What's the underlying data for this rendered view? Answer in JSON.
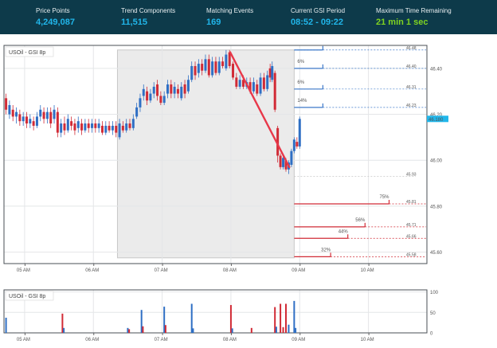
{
  "stats": [
    {
      "label": "Price Points",
      "value": "4,249,087",
      "color": "#21b6ea"
    },
    {
      "label": "Trend Components",
      "value": "11,515",
      "color": "#21b6ea"
    },
    {
      "label": "Matching Events",
      "value": "169",
      "color": "#21b6ea"
    },
    {
      "label": "Current GSI Period",
      "value": "08:52 - 09:22",
      "color": "#21b6ea"
    },
    {
      "label": "Maximum Time Remaining",
      "value": "21 min 1 sec",
      "color": "#7fd321"
    }
  ],
  "chart_data": [
    {
      "type": "candlestick",
      "legend": "USOil - GSI 8p",
      "x_ticks": [
        "05 AM",
        "06 AM",
        "07 AM",
        "08 AM",
        "09 AM",
        "10 AM"
      ],
      "x_tick_hours": [
        5,
        6,
        7,
        8,
        9,
        10
      ],
      "x_range_hours": [
        4.7,
        10.85
      ],
      "y_ticks": [
        45.6,
        45.8,
        46.0,
        46.2,
        46.4
      ],
      "y_range": [
        45.55,
        46.5
      ],
      "current_price": {
        "label": "46.180",
        "value": 46.18
      },
      "highlight_window_hours": [
        6.35,
        8.92
      ],
      "trend_line": [
        {
          "t": 7.99,
          "price": 46.47
        },
        {
          "t": 8.85,
          "price": 45.97
        }
      ],
      "projections_up": [
        {
          "percent": "",
          "label": "46.48",
          "price": 46.48
        },
        {
          "percent": "6%",
          "label": "46.40",
          "price": 46.4
        },
        {
          "percent": "6%",
          "label": "46.31",
          "price": 46.31
        },
        {
          "percent": "14%",
          "label": "46.23",
          "price": 46.23
        }
      ],
      "projections_down": [
        {
          "percent": "75%",
          "label": "45.81",
          "price": 45.81,
          "end_hour": 10.3
        },
        {
          "percent": "56%",
          "label": "45.71",
          "price": 45.71,
          "end_hour": 9.95
        },
        {
          "percent": "44%",
          "label": "45.66",
          "price": 45.66,
          "end_hour": 9.7
        },
        {
          "percent": "32%",
          "label": "45.58",
          "price": 45.58,
          "end_hour": 9.45
        }
      ],
      "mid_level": {
        "label": "45.93",
        "price": 45.93
      },
      "candles": [
        {
          "t": 4.73,
          "o": 46.27,
          "c": 46.22,
          "h": 46.29,
          "l": 46.2
        },
        {
          "t": 4.78,
          "o": 46.2,
          "c": 46.24,
          "h": 46.26,
          "l": 46.18
        },
        {
          "t": 4.83,
          "o": 46.22,
          "c": 46.19,
          "h": 46.24,
          "l": 46.17
        },
        {
          "t": 4.88,
          "o": 46.19,
          "c": 46.21,
          "h": 46.23,
          "l": 46.16
        },
        {
          "t": 4.93,
          "o": 46.2,
          "c": 46.17,
          "h": 46.22,
          "l": 46.15
        },
        {
          "t": 4.98,
          "o": 46.17,
          "c": 46.19,
          "h": 46.21,
          "l": 46.15
        },
        {
          "t": 5.03,
          "o": 46.19,
          "c": 46.16,
          "h": 46.21,
          "l": 46.14
        },
        {
          "t": 5.08,
          "o": 46.16,
          "c": 46.18,
          "h": 46.2,
          "l": 46.14
        },
        {
          "t": 5.13,
          "o": 46.17,
          "c": 46.15,
          "h": 46.19,
          "l": 46.13
        },
        {
          "t": 5.18,
          "o": 46.15,
          "c": 46.19,
          "h": 46.21,
          "l": 46.14
        },
        {
          "t": 5.23,
          "o": 46.19,
          "c": 46.22,
          "h": 46.24,
          "l": 46.17
        },
        {
          "t": 5.28,
          "o": 46.21,
          "c": 46.18,
          "h": 46.23,
          "l": 46.16
        },
        {
          "t": 5.33,
          "o": 46.18,
          "c": 46.21,
          "h": 46.23,
          "l": 46.16
        },
        {
          "t": 5.38,
          "o": 46.21,
          "c": 46.16,
          "h": 46.23,
          "l": 46.14
        },
        {
          "t": 5.43,
          "o": 46.18,
          "c": 46.22,
          "h": 46.24,
          "l": 46.16
        },
        {
          "t": 5.48,
          "o": 46.21,
          "c": 46.12,
          "h": 46.23,
          "l": 46.1
        },
        {
          "t": 5.53,
          "o": 46.12,
          "c": 46.16,
          "h": 46.18,
          "l": 46.1
        },
        {
          "t": 5.58,
          "o": 46.16,
          "c": 46.13,
          "h": 46.19,
          "l": 46.11
        },
        {
          "t": 5.63,
          "o": 46.13,
          "c": 46.18,
          "h": 46.2,
          "l": 46.12
        },
        {
          "t": 5.68,
          "o": 46.17,
          "c": 46.15,
          "h": 46.19,
          "l": 46.13
        },
        {
          "t": 5.73,
          "o": 46.16,
          "c": 46.13,
          "h": 46.18,
          "l": 46.11
        },
        {
          "t": 5.78,
          "o": 46.14,
          "c": 46.17,
          "h": 46.19,
          "l": 46.12
        },
        {
          "t": 5.83,
          "o": 46.16,
          "c": 46.13,
          "h": 46.18,
          "l": 46.11
        },
        {
          "t": 5.88,
          "o": 46.13,
          "c": 46.16,
          "h": 46.18,
          "l": 46.12
        },
        {
          "t": 5.93,
          "o": 46.16,
          "c": 46.14,
          "h": 46.18,
          "l": 46.12
        },
        {
          "t": 5.98,
          "o": 46.14,
          "c": 46.16,
          "h": 46.18,
          "l": 46.12
        },
        {
          "t": 6.03,
          "o": 46.16,
          "c": 46.14,
          "h": 46.18,
          "l": 46.12
        },
        {
          "t": 6.08,
          "o": 46.14,
          "c": 46.16,
          "h": 46.18,
          "l": 46.12
        },
        {
          "t": 6.13,
          "o": 46.15,
          "c": 46.12,
          "h": 46.17,
          "l": 46.11
        },
        {
          "t": 6.18,
          "o": 46.12,
          "c": 46.15,
          "h": 46.17,
          "l": 46.11
        },
        {
          "t": 6.23,
          "o": 46.15,
          "c": 46.13,
          "h": 46.17,
          "l": 46.12
        },
        {
          "t": 6.28,
          "o": 46.13,
          "c": 46.15,
          "h": 46.17,
          "l": 46.11
        },
        {
          "t": 6.33,
          "o": 46.15,
          "c": 46.12,
          "h": 46.17,
          "l": 46.1
        },
        {
          "t": 6.38,
          "o": 46.1,
          "c": 46.16,
          "h": 46.18,
          "l": 46.09
        },
        {
          "t": 6.43,
          "o": 46.15,
          "c": 46.13,
          "h": 46.17,
          "l": 46.12
        },
        {
          "t": 6.48,
          "o": 46.13,
          "c": 46.16,
          "h": 46.18,
          "l": 46.12
        },
        {
          "t": 6.53,
          "o": 46.16,
          "c": 46.14,
          "h": 46.18,
          "l": 46.13
        },
        {
          "t": 6.58,
          "o": 46.14,
          "c": 46.18,
          "h": 46.2,
          "l": 46.13
        },
        {
          "t": 6.63,
          "o": 46.19,
          "c": 46.23,
          "h": 46.25,
          "l": 46.18
        },
        {
          "t": 6.68,
          "o": 46.23,
          "c": 46.27,
          "h": 46.29,
          "l": 46.21
        },
        {
          "t": 6.73,
          "o": 46.28,
          "c": 46.31,
          "h": 46.33,
          "l": 46.26
        },
        {
          "t": 6.78,
          "o": 46.3,
          "c": 46.26,
          "h": 46.32,
          "l": 46.24
        },
        {
          "t": 6.83,
          "o": 46.26,
          "c": 46.29,
          "h": 46.31,
          "l": 46.25
        },
        {
          "t": 6.88,
          "o": 46.29,
          "c": 46.32,
          "h": 46.34,
          "l": 46.27
        },
        {
          "t": 6.93,
          "o": 46.33,
          "c": 46.28,
          "h": 46.35,
          "l": 46.26
        },
        {
          "t": 6.98,
          "o": 46.28,
          "c": 46.25,
          "h": 46.3,
          "l": 46.24
        },
        {
          "t": 7.03,
          "o": 46.25,
          "c": 46.28,
          "h": 46.3,
          "l": 46.24
        },
        {
          "t": 7.08,
          "o": 46.29,
          "c": 46.33,
          "h": 46.35,
          "l": 46.27
        },
        {
          "t": 7.13,
          "o": 46.33,
          "c": 46.29,
          "h": 46.35,
          "l": 46.27
        },
        {
          "t": 7.18,
          "o": 46.29,
          "c": 46.32,
          "h": 46.34,
          "l": 46.27
        },
        {
          "t": 7.23,
          "o": 46.31,
          "c": 46.29,
          "h": 46.33,
          "l": 46.27
        },
        {
          "t": 7.28,
          "o": 46.27,
          "c": 46.32,
          "h": 46.34,
          "l": 46.26
        },
        {
          "t": 7.33,
          "o": 46.33,
          "c": 46.29,
          "h": 46.35,
          "l": 46.27
        },
        {
          "t": 7.38,
          "o": 46.3,
          "c": 46.35,
          "h": 46.37,
          "l": 46.29
        },
        {
          "t": 7.43,
          "o": 46.35,
          "c": 46.41,
          "h": 46.43,
          "l": 46.34
        },
        {
          "t": 7.48,
          "o": 46.41,
          "c": 46.37,
          "h": 46.43,
          "l": 46.35
        },
        {
          "t": 7.53,
          "o": 46.38,
          "c": 46.42,
          "h": 46.44,
          "l": 46.36
        },
        {
          "t": 7.58,
          "o": 46.42,
          "c": 46.39,
          "h": 46.44,
          "l": 46.37
        },
        {
          "t": 7.63,
          "o": 46.39,
          "c": 46.44,
          "h": 46.46,
          "l": 46.38
        },
        {
          "t": 7.68,
          "o": 46.44,
          "c": 46.37,
          "h": 46.46,
          "l": 46.36
        },
        {
          "t": 7.73,
          "o": 46.37,
          "c": 46.43,
          "h": 46.45,
          "l": 46.36
        },
        {
          "t": 7.78,
          "o": 46.43,
          "c": 46.38,
          "h": 46.45,
          "l": 46.37
        },
        {
          "t": 7.83,
          "o": 46.38,
          "c": 46.43,
          "h": 46.45,
          "l": 46.37
        },
        {
          "t": 7.88,
          "o": 46.43,
          "c": 46.41,
          "h": 46.45,
          "l": 46.4
        },
        {
          "t": 7.93,
          "o": 46.4,
          "c": 46.46,
          "h": 46.48,
          "l": 46.39
        },
        {
          "t": 7.98,
          "o": 46.47,
          "c": 46.41,
          "h": 46.48,
          "l": 46.4
        },
        {
          "t": 8.03,
          "o": 46.42,
          "c": 46.36,
          "h": 46.43,
          "l": 46.35
        },
        {
          "t": 8.08,
          "o": 46.36,
          "c": 46.32,
          "h": 46.38,
          "l": 46.31
        },
        {
          "t": 8.13,
          "o": 46.32,
          "c": 46.35,
          "h": 46.37,
          "l": 46.31
        },
        {
          "t": 8.18,
          "o": 46.35,
          "c": 46.32,
          "h": 46.37,
          "l": 46.31
        },
        {
          "t": 8.23,
          "o": 46.32,
          "c": 46.34,
          "h": 46.36,
          "l": 46.31
        },
        {
          "t": 8.28,
          "o": 46.34,
          "c": 46.3,
          "h": 46.36,
          "l": 46.29
        },
        {
          "t": 8.33,
          "o": 46.3,
          "c": 46.34,
          "h": 46.36,
          "l": 46.29
        },
        {
          "t": 8.38,
          "o": 46.33,
          "c": 46.29,
          "h": 46.35,
          "l": 46.28
        },
        {
          "t": 8.43,
          "o": 46.29,
          "c": 46.36,
          "h": 46.38,
          "l": 46.28
        },
        {
          "t": 8.48,
          "o": 46.36,
          "c": 46.31,
          "h": 46.38,
          "l": 46.3
        },
        {
          "t": 8.53,
          "o": 46.31,
          "c": 46.37,
          "h": 46.39,
          "l": 46.3
        },
        {
          "t": 8.57,
          "o": 46.4,
          "c": 46.36,
          "h": 46.42,
          "l": 46.34
        },
        {
          "t": 8.6,
          "o": 46.35,
          "c": 46.41,
          "h": 46.43,
          "l": 46.34
        },
        {
          "t": 8.64,
          "o": 46.38,
          "c": 46.22,
          "h": 46.39,
          "l": 46.21
        },
        {
          "t": 8.68,
          "o": 46.14,
          "c": 46.02,
          "h": 46.15,
          "l": 45.99
        },
        {
          "t": 8.72,
          "o": 46.02,
          "c": 45.97,
          "h": 46.03,
          "l": 45.96
        },
        {
          "t": 8.76,
          "o": 45.97,
          "c": 46.01,
          "h": 46.02,
          "l": 45.96
        },
        {
          "t": 8.8,
          "o": 46.0,
          "c": 45.96,
          "h": 46.01,
          "l": 45.95
        },
        {
          "t": 8.84,
          "o": 45.96,
          "c": 45.99,
          "h": 46.0,
          "l": 45.94
        },
        {
          "t": 8.88,
          "o": 45.98,
          "c": 46.04,
          "h": 46.05,
          "l": 45.97
        },
        {
          "t": 8.92,
          "o": 46.04,
          "c": 46.09,
          "h": 46.1,
          "l": 46.03
        },
        {
          "t": 8.96,
          "o": 46.08,
          "c": 46.06,
          "h": 46.1,
          "l": 46.05
        },
        {
          "t": 9.0,
          "o": 46.06,
          "c": 46.18,
          "h": 46.19,
          "l": 46.05
        }
      ]
    },
    {
      "type": "bar",
      "legend": "USOil - GSI 8p",
      "x_ticks": [
        "05 AM",
        "06 AM",
        "07 AM",
        "08 AM",
        "09 AM",
        "10 AM"
      ],
      "y_ticks": [
        0,
        50,
        100
      ],
      "y_range": [
        0,
        105
      ],
      "bars": [
        {
          "t": 4.73,
          "value": 37,
          "color": "#2f6fc4"
        },
        {
          "t": 5.55,
          "value": 47,
          "color": "#d12b36"
        },
        {
          "t": 5.57,
          "value": 12,
          "color": "#2f6fc4"
        },
        {
          "t": 6.5,
          "value": 12,
          "color": "#2f6fc4"
        },
        {
          "t": 6.52,
          "value": 9,
          "color": "#d12b36"
        },
        {
          "t": 6.7,
          "value": 56,
          "color": "#2f6fc4"
        },
        {
          "t": 6.72,
          "value": 16,
          "color": "#d12b36"
        },
        {
          "t": 7.03,
          "value": 64,
          "color": "#2f6fc4"
        },
        {
          "t": 7.05,
          "value": 19,
          "color": "#d12b36"
        },
        {
          "t": 7.43,
          "value": 71,
          "color": "#2f6fc4"
        },
        {
          "t": 7.45,
          "value": 11,
          "color": "#2f6fc4"
        },
        {
          "t": 8.0,
          "value": 68,
          "color": "#d12b36"
        },
        {
          "t": 8.02,
          "value": 11,
          "color": "#2f6fc4"
        },
        {
          "t": 8.3,
          "value": 12,
          "color": "#d12b36"
        },
        {
          "t": 8.64,
          "value": 63,
          "color": "#d12b36"
        },
        {
          "t": 8.66,
          "value": 15,
          "color": "#2f6fc4"
        },
        {
          "t": 8.72,
          "value": 71,
          "color": "#d12b36"
        },
        {
          "t": 8.76,
          "value": 14,
          "color": "#d12b36"
        },
        {
          "t": 8.8,
          "value": 71,
          "color": "#d12b36"
        },
        {
          "t": 8.84,
          "value": 20,
          "color": "#2f6fc4"
        },
        {
          "t": 8.92,
          "value": 78,
          "color": "#2f6fc4"
        },
        {
          "t": 8.94,
          "value": 12,
          "color": "#2f6fc4"
        }
      ]
    }
  ],
  "colors": {
    "up": "#2f6fc4",
    "down": "#d12b36",
    "accent": "#21b6ea",
    "header": "#0d3a4a"
  }
}
